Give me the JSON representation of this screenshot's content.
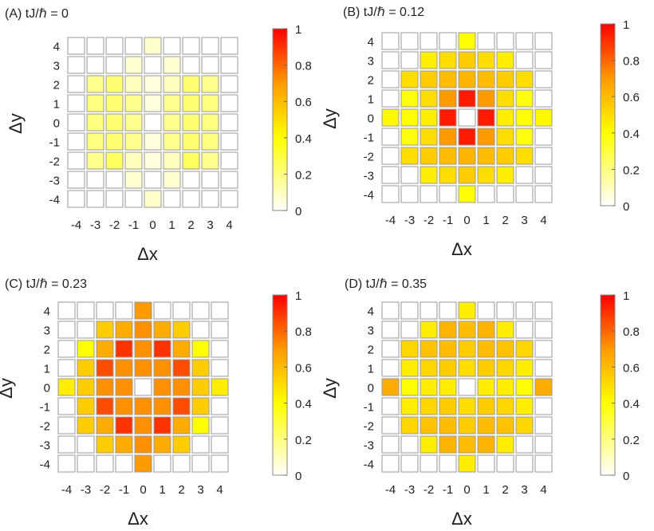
{
  "colors": {
    "colormap": [
      "#ffffff",
      "#ffff00",
      "#ff8c00",
      "#ff0000"
    ],
    "cell_border": "#9a9a9a",
    "text": "#222222"
  },
  "chart_data": [
    {
      "type": "heatmap",
      "title": "(A) tJ/ℏ = 0",
      "xlabel": "Δx",
      "ylabel": "Δy",
      "x_ticks": [
        "-4",
        "-3",
        "-2",
        "-1",
        "0",
        "1",
        "2",
        "3",
        "4"
      ],
      "y_ticks": [
        "4",
        "3",
        "2",
        "1",
        "0",
        "-1",
        "-2",
        "-3",
        "-4"
      ],
      "colorbar_ticks": [
        "0",
        "0.2",
        "0.4",
        "0.6",
        "0.8",
        "1"
      ],
      "clim": [
        0,
        1
      ],
      "values": [
        [
          0,
          0,
          0,
          0,
          0.08,
          0,
          0,
          0,
          0
        ],
        [
          0,
          0,
          0,
          0.07,
          0,
          0.07,
          0,
          0,
          0
        ],
        [
          0,
          0.18,
          0.22,
          0.1,
          0.05,
          0.1,
          0.22,
          0.18,
          0
        ],
        [
          0,
          0.2,
          0.22,
          0.18,
          0.05,
          0.18,
          0.22,
          0.2,
          0
        ],
        [
          0,
          0.2,
          0.22,
          0.18,
          0,
          0.18,
          0.22,
          0.2,
          0
        ],
        [
          0,
          0.2,
          0.22,
          0.18,
          0.05,
          0.18,
          0.22,
          0.2,
          0
        ],
        [
          0,
          0.18,
          0.25,
          0.1,
          0.05,
          0.1,
          0.25,
          0.18,
          0
        ],
        [
          0,
          0,
          0,
          0.07,
          0,
          0.07,
          0,
          0,
          0
        ],
        [
          0,
          0,
          0,
          0,
          0.08,
          0,
          0,
          0,
          0
        ]
      ]
    },
    {
      "type": "heatmap",
      "title": "(B) tJ/ℏ = 0.12",
      "xlabel": "Δx",
      "ylabel": "Δy",
      "x_ticks": [
        "-4",
        "-3",
        "-2",
        "-1",
        "0",
        "1",
        "2",
        "3",
        "4"
      ],
      "y_ticks": [
        "4",
        "3",
        "2",
        "1",
        "0",
        "-1",
        "-2",
        "-3",
        "-4"
      ],
      "colorbar_ticks": [
        "0",
        "0.2",
        "0.4",
        "0.6",
        "0.8",
        "1"
      ],
      "clim": [
        0,
        1
      ],
      "values": [
        [
          0,
          0,
          0,
          0,
          0.4,
          0,
          0,
          0,
          0
        ],
        [
          0,
          0,
          0.45,
          0.5,
          0.55,
          0.5,
          0.45,
          0,
          0
        ],
        [
          0,
          0.5,
          0.55,
          0.6,
          0.62,
          0.6,
          0.55,
          0.5,
          0
        ],
        [
          0,
          0.38,
          0.5,
          0.7,
          0.95,
          0.7,
          0.5,
          0.38,
          0
        ],
        [
          0.42,
          0.4,
          0.45,
          0.95,
          0,
          0.95,
          0.45,
          0.4,
          0.42
        ],
        [
          0,
          0.38,
          0.5,
          0.7,
          0.95,
          0.7,
          0.5,
          0.38,
          0
        ],
        [
          0,
          0.5,
          0.55,
          0.6,
          0.62,
          0.6,
          0.55,
          0.5,
          0
        ],
        [
          0,
          0,
          0.45,
          0.5,
          0.55,
          0.5,
          0.45,
          0,
          0
        ],
        [
          0,
          0,
          0,
          0,
          0.4,
          0,
          0,
          0,
          0
        ]
      ]
    },
    {
      "type": "heatmap",
      "title": "(C) tJ/ℏ = 0.23",
      "xlabel": "Δx",
      "ylabel": "Δy",
      "x_ticks": [
        "-4",
        "-3",
        "-2",
        "-1",
        "0",
        "1",
        "2",
        "3",
        "4"
      ],
      "y_ticks": [
        "4",
        "3",
        "2",
        "1",
        "0",
        "-1",
        "-2",
        "-3",
        "-4"
      ],
      "colorbar_ticks": [
        "0",
        "0.2",
        "0.4",
        "0.6",
        "0.8",
        "1"
      ],
      "clim": [
        0,
        1
      ],
      "values": [
        [
          0,
          0,
          0,
          0,
          0.7,
          0,
          0,
          0,
          0
        ],
        [
          0,
          0,
          0.55,
          0.65,
          0.72,
          0.65,
          0.55,
          0,
          0
        ],
        [
          0,
          0.4,
          0.65,
          0.9,
          0.72,
          0.9,
          0.65,
          0.4,
          0
        ],
        [
          0,
          0.55,
          0.85,
          0.72,
          0.72,
          0.72,
          0.85,
          0.55,
          0
        ],
        [
          0.45,
          0.55,
          0.72,
          0.72,
          0,
          0.72,
          0.72,
          0.55,
          0.45
        ],
        [
          0,
          0.55,
          0.85,
          0.72,
          0.72,
          0.72,
          0.85,
          0.55,
          0
        ],
        [
          0,
          0.55,
          0.65,
          0.9,
          0.72,
          0.9,
          0.65,
          0.4,
          0
        ],
        [
          0,
          0,
          0.55,
          0.65,
          0.72,
          0.65,
          0.55,
          0,
          0
        ],
        [
          0,
          0,
          0,
          0,
          0.7,
          0,
          0,
          0,
          0
        ]
      ]
    },
    {
      "type": "heatmap",
      "title": "(D) tJ/ℏ = 0.35",
      "xlabel": "Δx",
      "ylabel": "Δy",
      "x_ticks": [
        "-4",
        "-3",
        "-2",
        "-1",
        "0",
        "1",
        "2",
        "3",
        "4"
      ],
      "y_ticks": [
        "4",
        "3",
        "2",
        "1",
        "0",
        "-1",
        "-2",
        "-3",
        "-4"
      ],
      "colorbar_ticks": [
        "0",
        "0.2",
        "0.4",
        "0.6",
        "0.8",
        "1"
      ],
      "clim": [
        0,
        1
      ],
      "values": [
        [
          0,
          0,
          0,
          0,
          0.45,
          0,
          0,
          0,
          0
        ],
        [
          0,
          0,
          0.45,
          0.62,
          0.6,
          0.62,
          0.45,
          0,
          0
        ],
        [
          0,
          0.52,
          0.58,
          0.6,
          0.55,
          0.6,
          0.58,
          0.52,
          0
        ],
        [
          0,
          0.45,
          0.52,
          0.55,
          0.5,
          0.55,
          0.52,
          0.45,
          0
        ],
        [
          0.65,
          0.4,
          0.45,
          0.45,
          0,
          0.45,
          0.45,
          0.4,
          0.65
        ],
        [
          0,
          0.45,
          0.52,
          0.55,
          0.5,
          0.55,
          0.52,
          0.45,
          0
        ],
        [
          0,
          0.52,
          0.58,
          0.6,
          0.55,
          0.6,
          0.58,
          0.52,
          0
        ],
        [
          0,
          0,
          0.45,
          0.62,
          0.6,
          0.62,
          0.45,
          0,
          0
        ],
        [
          0,
          0,
          0,
          0,
          0.45,
          0,
          0,
          0,
          0
        ]
      ]
    }
  ]
}
